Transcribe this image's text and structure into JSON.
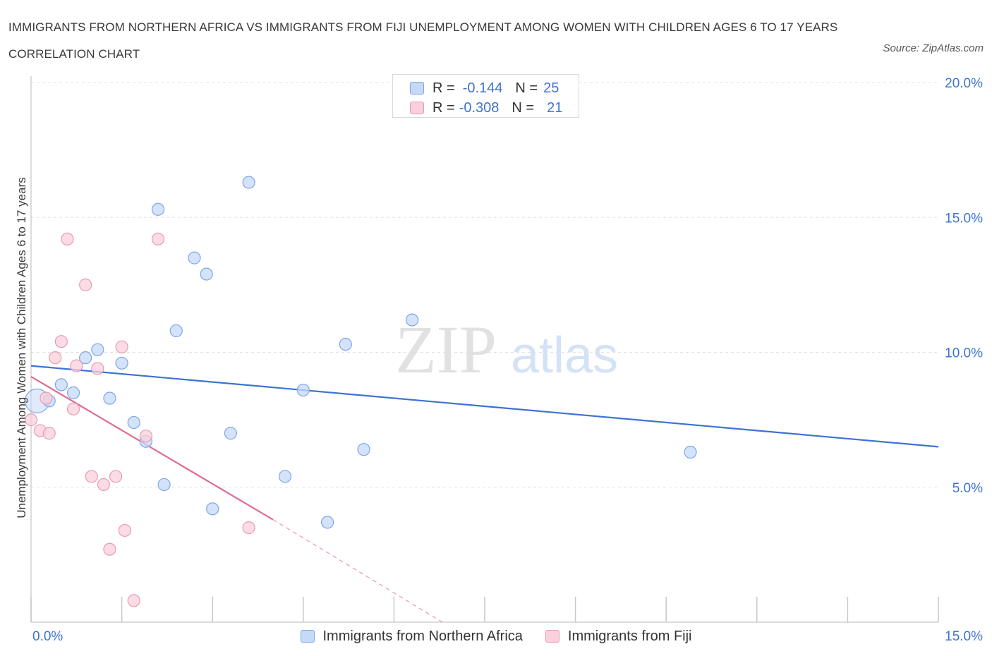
{
  "title": "IMMIGRANTS FROM NORTHERN AFRICA VS IMMIGRANTS FROM FIJI UNEMPLOYMENT AMONG WOMEN WITH CHILDREN AGES 6 TO 17 YEARS CORRELATION CHART",
  "source": "Source: ZipAtlas.com",
  "watermark": {
    "zip": "ZIP",
    "atlas": "atlas"
  },
  "colors": {
    "blue": "#3d73d1",
    "blue_fill": "#c6d9f7",
    "pink": "#e06a93",
    "pink_fill": "#f9d0dc"
  },
  "legend": {
    "rows": [
      {
        "r_label": "R =",
        "r_value": "-0.144",
        "n_label": "N =",
        "n_value": "25"
      },
      {
        "r_label": "R =",
        "r_value": "-0.308",
        "n_label": "N =",
        "n_value": "21"
      }
    ]
  },
  "bottom_legend": {
    "series1": "Immigrants from Northern Africa",
    "series2": "Immigrants from Fiji"
  },
  "chart_data": {
    "type": "scatter",
    "title": "IMMIGRANTS FROM NORTHERN AFRICA VS IMMIGRANTS FROM FIJI UNEMPLOYMENT AMONG WOMEN WITH CHILDREN AGES 6 TO 17 YEARS CORRELATION CHART",
    "xlabel": "",
    "ylabel": "Unemployment Among Women with Children Ages 6 to 17 years",
    "xlim": [
      0,
      15
    ],
    "ylim": [
      0,
      20
    ],
    "x_tick_labels": [
      "0.0%",
      "15.0%"
    ],
    "y_ticks": [
      5,
      10,
      15,
      20
    ],
    "y_tick_labels": [
      "5.0%",
      "10.0%",
      "15.0%",
      "20.0%"
    ],
    "grid": true,
    "series": [
      {
        "name": "Immigrants from Northern Africa",
        "color": "#3d73d1",
        "points": [
          [
            0.1,
            8.2
          ],
          [
            0.5,
            8.8
          ],
          [
            0.7,
            8.5
          ],
          [
            0.9,
            9.8
          ],
          [
            1.1,
            10.1
          ],
          [
            1.3,
            8.3
          ],
          [
            1.5,
            9.6
          ],
          [
            1.7,
            7.4
          ],
          [
            1.9,
            6.7
          ],
          [
            2.1,
            15.3
          ],
          [
            2.2,
            5.1
          ],
          [
            2.4,
            10.8
          ],
          [
            2.7,
            13.5
          ],
          [
            2.9,
            12.9
          ],
          [
            3.0,
            4.2
          ],
          [
            3.3,
            7.0
          ],
          [
            3.6,
            16.3
          ],
          [
            4.2,
            5.4
          ],
          [
            4.5,
            8.6
          ],
          [
            4.9,
            3.7
          ],
          [
            5.2,
            10.3
          ],
          [
            5.5,
            6.4
          ],
          [
            6.3,
            11.2
          ],
          [
            10.9,
            6.3
          ],
          [
            0.3,
            8.2
          ]
        ],
        "trend": {
          "x": [
            0,
            15
          ],
          "y": [
            9.5,
            6.5
          ]
        }
      },
      {
        "name": "Immigrants from Fiji",
        "color": "#e06a93",
        "points": [
          [
            0.0,
            7.5
          ],
          [
            0.15,
            7.1
          ],
          [
            0.3,
            7.0
          ],
          [
            0.4,
            9.8
          ],
          [
            0.5,
            10.4
          ],
          [
            0.6,
            14.2
          ],
          [
            0.7,
            7.9
          ],
          [
            0.75,
            9.5
          ],
          [
            0.9,
            12.5
          ],
          [
            1.0,
            5.4
          ],
          [
            1.1,
            9.4
          ],
          [
            1.2,
            5.1
          ],
          [
            1.3,
            2.7
          ],
          [
            1.4,
            5.4
          ],
          [
            1.5,
            10.2
          ],
          [
            1.55,
            3.4
          ],
          [
            1.7,
            0.8
          ],
          [
            1.9,
            6.9
          ],
          [
            2.1,
            14.2
          ],
          [
            3.6,
            3.5
          ],
          [
            0.25,
            8.3
          ]
        ],
        "trend": {
          "x": [
            0,
            4.0
          ],
          "y": [
            9.1,
            3.8
          ]
        },
        "trend_extension": {
          "x": [
            4.0,
            6.8
          ],
          "y": [
            3.8,
            0.0
          ]
        }
      }
    ]
  }
}
